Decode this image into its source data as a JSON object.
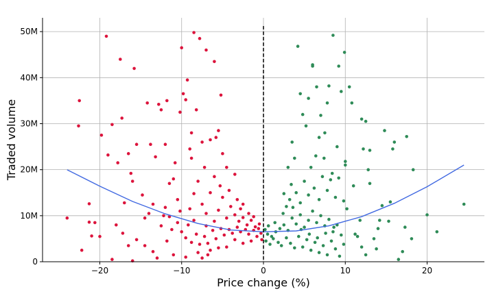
{
  "chart_data": {
    "type": "scatter",
    "title": "",
    "xlabel": "Price change (%)",
    "ylabel": "Traded volume",
    "xlim": [
      -27,
      27
    ],
    "ylim": [
      0,
      53000000
    ],
    "xticks": [
      -20,
      -10,
      0,
      10,
      20
    ],
    "xtick_labels": [
      "−20",
      "−10",
      "0",
      "10",
      "20"
    ],
    "yticks": [
      0,
      10000000,
      20000000,
      30000000,
      40000000,
      50000000
    ],
    "ytick_labels": [
      "0",
      "10M",
      "20M",
      "30M",
      "40M",
      "50M"
    ],
    "grid": true,
    "legend": "none",
    "vertical_reference_line": {
      "x": 0,
      "style": "dashed",
      "color": "#000000"
    },
    "series": [
      {
        "color": "#dc143c",
        "points": [
          [
            -24.0,
            9.5
          ],
          [
            -22.5,
            35.0
          ],
          [
            -22.6,
            29.5
          ],
          [
            -21.3,
            12.6
          ],
          [
            -21.3,
            8.6
          ],
          [
            -20.6,
            8.5
          ],
          [
            -21.0,
            5.6
          ],
          [
            -22.2,
            2.5
          ],
          [
            -19.8,
            27.5
          ],
          [
            -19.2,
            49.0
          ],
          [
            -19.0,
            23.2
          ],
          [
            -18.5,
            29.8
          ],
          [
            -17.8,
            21.5
          ],
          [
            -17.5,
            44.0
          ],
          [
            -17.3,
            31.2
          ],
          [
            -17.0,
            12.8
          ],
          [
            -16.5,
            23.5
          ],
          [
            -16.2,
            19.2
          ],
          [
            -16.0,
            17.5
          ],
          [
            -15.8,
            42.0
          ],
          [
            -15.5,
            25.5
          ],
          [
            -14.8,
            14.5
          ],
          [
            -14.5,
            9.5
          ],
          [
            -14.2,
            34.5
          ],
          [
            -13.8,
            25.5
          ],
          [
            -13.2,
            22.8
          ],
          [
            -12.8,
            34.2
          ],
          [
            -12.5,
            33.0
          ],
          [
            -12.0,
            25.5
          ],
          [
            -11.8,
            35.0
          ],
          [
            -11.5,
            17.0
          ],
          [
            -11.0,
            18.0
          ],
          [
            -10.8,
            21.5
          ],
          [
            -10.2,
            32.5
          ],
          [
            -10.0,
            46.5
          ],
          [
            -9.8,
            36.5
          ],
          [
            -9.5,
            35.2
          ],
          [
            -9.3,
            39.5
          ],
          [
            -9.0,
            24.5
          ],
          [
            -8.8,
            28.0
          ],
          [
            -8.5,
            49.8
          ],
          [
            -8.2,
            33.0
          ],
          [
            -7.8,
            48.5
          ],
          [
            -7.5,
            26.0
          ],
          [
            -7.0,
            46.0
          ],
          [
            -6.5,
            26.5
          ],
          [
            -6.0,
            43.5
          ],
          [
            -5.8,
            27.0
          ],
          [
            -5.5,
            28.5
          ],
          [
            -5.2,
            36.2
          ],
          [
            -5.0,
            23.5
          ],
          [
            -4.5,
            20.5
          ],
          [
            -3.5,
            19.0
          ],
          [
            -2.5,
            12.5
          ],
          [
            -20.0,
            5.5
          ],
          [
            -18.0,
            8.0
          ],
          [
            -17.2,
            6.2
          ],
          [
            -16.5,
            3.5
          ],
          [
            -15.5,
            4.8
          ],
          [
            -14.5,
            3.5
          ],
          [
            -13.5,
            2.2
          ],
          [
            -12.5,
            7.8
          ],
          [
            -11.8,
            4.5
          ],
          [
            -11.0,
            1.5
          ],
          [
            -10.5,
            13.5
          ],
          [
            -9.5,
            1.0
          ],
          [
            -8.0,
            2.0
          ],
          [
            -18.5,
            0.5
          ],
          [
            -16.0,
            0.2
          ],
          [
            -13.0,
            0.8
          ],
          [
            -7.5,
            0.8
          ],
          [
            -6.8,
            1.5
          ],
          [
            -12.0,
            11.8
          ],
          [
            -11.5,
            9.8
          ],
          [
            -10.5,
            8.5
          ],
          [
            -10.0,
            6.5
          ],
          [
            -9.0,
            11.5
          ],
          [
            -8.5,
            14.8
          ],
          [
            -8.0,
            17.5
          ],
          [
            -7.5,
            12.5
          ],
          [
            -7.0,
            10.5
          ],
          [
            -6.5,
            15.0
          ],
          [
            -6.0,
            8.8
          ],
          [
            -5.5,
            11.2
          ],
          [
            -5.0,
            14.0
          ],
          [
            -4.5,
            9.5
          ],
          [
            -4.0,
            12.0
          ],
          [
            -3.5,
            10.2
          ],
          [
            -3.0,
            8.8
          ],
          [
            -2.5,
            9.6
          ],
          [
            -2.0,
            8.0
          ],
          [
            -1.5,
            9.0
          ],
          [
            -1.0,
            7.6
          ],
          [
            -0.5,
            8.2
          ],
          [
            -9.5,
            5.2
          ],
          [
            -8.8,
            4.2
          ],
          [
            -8.2,
            6.0
          ],
          [
            -7.8,
            3.8
          ],
          [
            -7.2,
            5.5
          ],
          [
            -6.8,
            4.0
          ],
          [
            -6.2,
            6.8
          ],
          [
            -5.8,
            5.0
          ],
          [
            -5.2,
            7.2
          ],
          [
            -4.8,
            5.8
          ],
          [
            -4.2,
            7.0
          ],
          [
            -3.8,
            6.2
          ],
          [
            -3.2,
            7.5
          ],
          [
            -2.8,
            6.5
          ],
          [
            -2.2,
            7.0
          ],
          [
            -1.8,
            6.0
          ],
          [
            -1.2,
            6.8
          ],
          [
            -0.8,
            5.5
          ],
          [
            -0.3,
            6.2
          ],
          [
            -0.2,
            4.8
          ],
          [
            -1.5,
            4.5
          ],
          [
            -2.5,
            4.0
          ],
          [
            -3.5,
            4.8
          ],
          [
            -4.5,
            3.2
          ],
          [
            -5.5,
            3.0
          ],
          [
            -6.5,
            2.5
          ],
          [
            -7.0,
            7.8
          ],
          [
            -8.5,
            9.0
          ],
          [
            -9.2,
            8.0
          ],
          [
            -10.2,
            11.0
          ],
          [
            -11.2,
            7.0
          ],
          [
            -12.2,
            10.0
          ],
          [
            -13.5,
            12.5
          ],
          [
            -14.0,
            10.5
          ],
          [
            -6.0,
            18.5
          ],
          [
            -7.2,
            20.5
          ],
          [
            -8.8,
            22.5
          ],
          [
            -5.3,
            16.5
          ],
          [
            -4.2,
            15.5
          ],
          [
            -3.2,
            13.5
          ],
          [
            -2.8,
            11.5
          ],
          [
            -1.8,
            10.5
          ],
          [
            -1.2,
            9.8
          ],
          [
            -0.6,
            7.2
          ]
        ]
      },
      {
        "color": "#2e8b57",
        "points": [
          [
            24.5,
            12.5
          ],
          [
            21.2,
            6.5
          ],
          [
            20.0,
            10.2
          ],
          [
            18.3,
            20.0
          ],
          [
            18.1,
            5.0
          ],
          [
            17.5,
            27.2
          ],
          [
            17.3,
            7.5
          ],
          [
            17.0,
            2.2
          ],
          [
            16.5,
            0.5
          ],
          [
            16.0,
            26.0
          ],
          [
            15.8,
            24.5
          ],
          [
            15.5,
            13.0
          ],
          [
            15.3,
            8.8
          ],
          [
            14.8,
            28.5
          ],
          [
            14.5,
            12.2
          ],
          [
            14.2,
            9.0
          ],
          [
            13.8,
            2.8
          ],
          [
            13.0,
            24.2
          ],
          [
            13.0,
            17.0
          ],
          [
            12.8,
            20.0
          ],
          [
            12.5,
            30.5
          ],
          [
            12.2,
            24.5
          ],
          [
            12.0,
            31.0
          ],
          [
            11.8,
            9.0
          ],
          [
            11.5,
            5.5
          ],
          [
            11.0,
            16.5
          ],
          [
            10.8,
            34.5
          ],
          [
            10.5,
            38.0
          ],
          [
            10.2,
            11.5
          ],
          [
            9.9,
            45.5
          ],
          [
            9.5,
            37.0
          ],
          [
            9.2,
            42.5
          ],
          [
            8.5,
            49.2
          ],
          [
            8.0,
            38.2
          ],
          [
            7.8,
            34.5
          ],
          [
            7.5,
            28.0
          ],
          [
            7.0,
            31.8
          ],
          [
            6.5,
            38.0
          ],
          [
            6.0,
            42.5
          ],
          [
            6.0,
            42.8
          ],
          [
            5.5,
            35.5
          ],
          [
            5.2,
            29.5
          ],
          [
            4.8,
            32.0
          ],
          [
            4.5,
            36.5
          ],
          [
            4.2,
            46.8
          ],
          [
            3.8,
            22.5
          ],
          [
            3.5,
            26.0
          ],
          [
            3.0,
            20.5
          ],
          [
            10.0,
            21.0
          ],
          [
            10.0,
            21.8
          ],
          [
            11.2,
            6.0
          ],
          [
            12.0,
            3.2
          ],
          [
            12.5,
            1.5
          ],
          [
            13.5,
            5.0
          ],
          [
            14.0,
            7.2
          ],
          [
            2.5,
            14.8
          ],
          [
            3.2,
            13.5
          ],
          [
            4.0,
            15.0
          ],
          [
            4.5,
            12.8
          ],
          [
            5.0,
            17.5
          ],
          [
            5.5,
            14.5
          ],
          [
            6.2,
            16.0
          ],
          [
            6.8,
            13.5
          ],
          [
            7.2,
            18.5
          ],
          [
            7.8,
            15.5
          ],
          [
            8.2,
            17.8
          ],
          [
            8.8,
            14.0
          ],
          [
            9.2,
            18.2
          ],
          [
            9.8,
            13.2
          ],
          [
            0.5,
            6.0
          ],
          [
            1.0,
            5.5
          ],
          [
            1.5,
            6.5
          ],
          [
            2.0,
            7.2
          ],
          [
            2.5,
            8.0
          ],
          [
            3.0,
            6.8
          ],
          [
            3.5,
            9.5
          ],
          [
            4.0,
            8.2
          ],
          [
            4.5,
            10.2
          ],
          [
            5.0,
            7.5
          ],
          [
            5.5,
            9.0
          ],
          [
            6.0,
            11.0
          ],
          [
            6.5,
            8.5
          ],
          [
            7.0,
            10.0
          ],
          [
            7.5,
            7.8
          ],
          [
            8.0,
            9.2
          ],
          [
            8.5,
            6.5
          ],
          [
            9.0,
            8.0
          ],
          [
            9.5,
            5.8
          ],
          [
            0.3,
            4.5
          ],
          [
            0.8,
            3.8
          ],
          [
            1.2,
            5.0
          ],
          [
            1.8,
            4.2
          ],
          [
            2.2,
            3.5
          ],
          [
            2.8,
            5.2
          ],
          [
            3.3,
            4.0
          ],
          [
            3.8,
            3.0
          ],
          [
            4.3,
            5.5
          ],
          [
            4.8,
            3.2
          ],
          [
            5.3,
            4.8
          ],
          [
            5.8,
            2.5
          ],
          [
            6.3,
            4.2
          ],
          [
            6.8,
            2.0
          ],
          [
            7.3,
            3.5
          ],
          [
            7.8,
            1.5
          ],
          [
            8.3,
            4.5
          ],
          [
            8.8,
            2.8
          ],
          [
            9.3,
            1.2
          ],
          [
            9.8,
            3.8
          ],
          [
            0.2,
            7.0
          ],
          [
            0.6,
            7.8
          ],
          [
            1.4,
            8.5
          ],
          [
            2.4,
            10.5
          ],
          [
            3.6,
            11.8
          ],
          [
            4.6,
            7.0
          ],
          [
            5.6,
            6.0
          ],
          [
            6.6,
            5.2
          ],
          [
            7.6,
            6.2
          ],
          [
            8.6,
            7.5
          ],
          [
            2.8,
            12.0
          ],
          [
            3.4,
            16.8
          ],
          [
            5.8,
            20.5
          ],
          [
            6.4,
            23.0
          ],
          [
            7.4,
            22.5
          ],
          [
            8.4,
            19.2
          ],
          [
            9.0,
            25.0
          ],
          [
            6.8,
            27.0
          ]
        ]
      }
    ],
    "fit_curve": {
      "color": "#4169e1",
      "x": [
        -24,
        -20,
        -16,
        -12,
        -8,
        -4,
        0,
        4,
        8,
        12,
        16,
        20,
        24.5
      ],
      "y": [
        20.0,
        16.4,
        13.1,
        10.4,
        8.3,
        6.9,
        6.5,
        6.7,
        7.8,
        9.8,
        12.7,
        16.3,
        21.0
      ]
    },
    "volume_unit": "M"
  }
}
